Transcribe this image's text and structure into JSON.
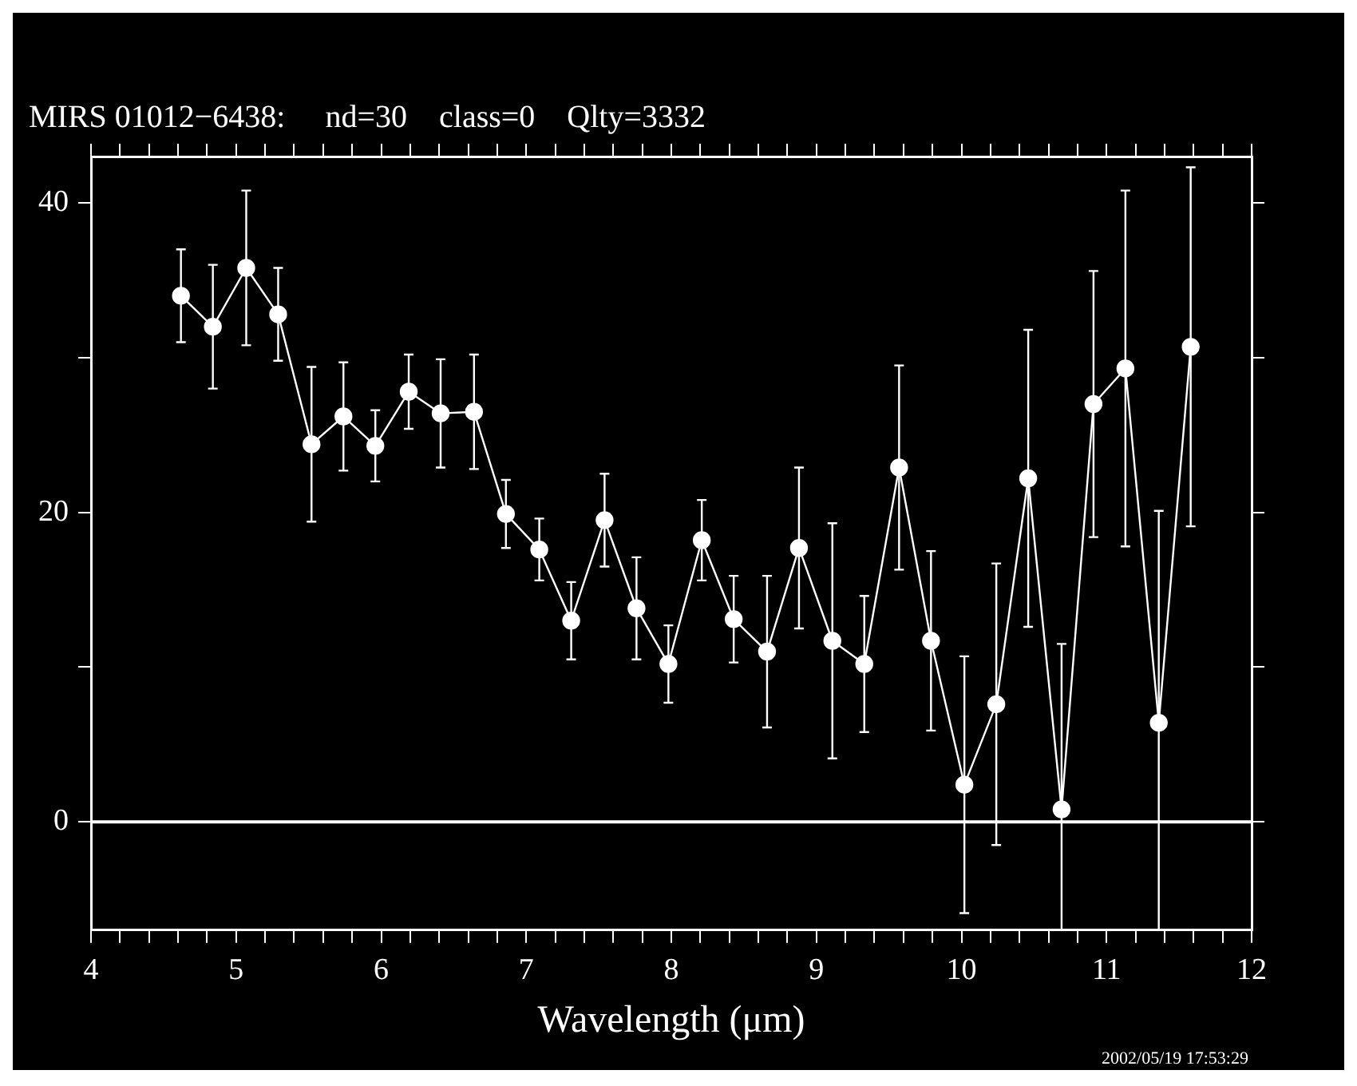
{
  "chart_data": {
    "type": "line",
    "title": "MIRS 01012−6438:     nd=30    class=0    Qlty=3332",
    "xlabel": "Wavelength (μm)",
    "x": [
      4.62,
      4.84,
      5.07,
      5.29,
      5.52,
      5.74,
      5.96,
      6.19,
      6.41,
      6.64,
      6.86,
      7.09,
      7.31,
      7.54,
      7.76,
      7.98,
      8.21,
      8.43,
      8.66,
      8.88,
      9.11,
      9.33,
      9.57,
      9.79,
      10.02,
      10.24,
      10.46,
      10.69,
      10.91,
      11.13,
      11.36,
      11.58
    ],
    "series": [
      {
        "color": "#ffffff",
        "values": [
          34.0,
          32.0,
          35.8,
          32.8,
          24.4,
          26.2,
          24.3,
          27.8,
          26.4,
          26.5,
          19.9,
          17.6,
          13.0,
          19.5,
          13.8,
          10.2,
          18.2,
          13.1,
          11.0,
          17.7,
          11.7,
          10.2,
          22.9,
          11.7,
          2.4,
          7.6,
          22.2,
          0.8,
          27.0,
          29.3,
          6.4,
          30.7
        ],
        "errors": [
          3,
          4,
          5,
          3,
          5,
          3.5,
          2.3,
          2.4,
          3.5,
          3.7,
          2.2,
          2,
          2.5,
          3,
          3.3,
          2.5,
          2.6,
          2.8,
          4.9,
          5.2,
          7.6,
          4.4,
          6.6,
          5.8,
          8.3,
          9.1,
          9.6,
          [
            -7,
            11.5
          ],
          8.6,
          11.5,
          [
            -7,
            20.1
          ],
          11.6
        ]
      }
    ],
    "xlim": [
      4,
      12
    ],
    "xticks": [
      4,
      {
        "value": 4.2,
        "label": null
      },
      {
        "value": 4.4,
        "label": null
      },
      {
        "value": 4.6,
        "label": null
      },
      {
        "value": 4.8,
        "label": null
      },
      5,
      {
        "value": 5.2,
        "label": null
      },
      {
        "value": 5.4,
        "label": null
      },
      {
        "value": 5.6,
        "label": null
      },
      {
        "value": 5.8,
        "label": null
      },
      6,
      {
        "value": 6.2,
        "label": null
      },
      {
        "value": 6.4,
        "label": null
      },
      {
        "value": 6.6,
        "label": null
      },
      {
        "value": 6.8,
        "label": null
      },
      7,
      {
        "value": 7.2,
        "label": null
      },
      {
        "value": 7.4,
        "label": null
      },
      {
        "value": 7.6,
        "label": null
      },
      {
        "value": 7.8,
        "label": null
      },
      8,
      {
        "value": 8.2,
        "label": null
      },
      {
        "value": 8.4,
        "label": null
      },
      {
        "value": 8.6,
        "label": null
      },
      {
        "value": 8.8,
        "label": null
      },
      9,
      {
        "value": 9.2,
        "label": null
      },
      {
        "value": 9.4,
        "label": null
      },
      {
        "value": 9.6,
        "label": null
      },
      {
        "value": 9.8,
        "label": null
      },
      10,
      {
        "value": 10.2,
        "label": null
      },
      {
        "value": 10.4,
        "label": null
      },
      {
        "value": 10.6,
        "label": null
      },
      {
        "value": 10.8,
        "label": null
      },
      11,
      {
        "value": 11.2,
        "label": null
      },
      {
        "value": 11.4,
        "label": null
      },
      {
        "value": 11.6,
        "label": null
      },
      {
        "value": 11.8,
        "label": null
      },
      12
    ],
    "ylim": [
      -7,
      43
    ],
    "yticks": [
      0,
      {
        "value": 10,
        "label": null
      },
      20,
      {
        "value": 30,
        "label": null
      },
      40
    ],
    "ref_lines": [
      {
        "axis": "y",
        "value": 0,
        "color": "#ffffff"
      }
    ],
    "annotations": [
      "2002/05/19 17:53:29"
    ],
    "marker": "circle",
    "line_style": "solid",
    "grid": false,
    "legend": false
  }
}
